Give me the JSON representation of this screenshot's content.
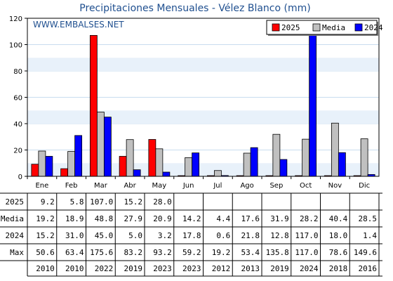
{
  "chart_data": {
    "type": "bar",
    "title": "Precipitaciones Mensuales - Vélez Blanco (mm)",
    "watermark": "WWW.EMBALSES.NET",
    "categories": [
      "Ene",
      "Feb",
      "Mar",
      "Abr",
      "May",
      "Jun",
      "Jul",
      "Ago",
      "Sep",
      "Oct",
      "Nov",
      "Dic"
    ],
    "ylim": [
      0,
      120
    ],
    "yticks": [
      0,
      20,
      40,
      60,
      80,
      100,
      120
    ],
    "legend_position": "top-right",
    "grid": "horizontal bands",
    "series": [
      {
        "name": "2025",
        "color": "#ff0000",
        "values": [
          9.2,
          5.8,
          107.0,
          15.2,
          28.0,
          0,
          0,
          0,
          0,
          0,
          0,
          0
        ]
      },
      {
        "name": "Media",
        "color": "#c0c0c0",
        "values": [
          19.2,
          18.9,
          48.8,
          27.9,
          20.9,
          14.2,
          4.4,
          17.6,
          31.9,
          28.2,
          40.4,
          28.5
        ]
      },
      {
        "name": "2024",
        "color": "#0000ff",
        "values": [
          15.2,
          31.0,
          45.0,
          5.0,
          3.2,
          17.8,
          0.6,
          21.8,
          12.8,
          117.0,
          18.0,
          1.4
        ]
      }
    ],
    "table": {
      "rows": [
        {
          "label": "2025",
          "cells": [
            "9.2",
            "5.8",
            "107.0",
            "15.2",
            "28.0",
            "",
            "",
            "",
            "",
            "",
            "",
            ""
          ]
        },
        {
          "label": "Media",
          "cells": [
            "19.2",
            "18.9",
            "48.8",
            "27.9",
            "20.9",
            "14.2",
            "4.4",
            "17.6",
            "31.9",
            "28.2",
            "40.4",
            "28.5"
          ]
        },
        {
          "label": "2024",
          "cells": [
            "15.2",
            "31.0",
            "45.0",
            "5.0",
            "3.2",
            "17.8",
            "0.6",
            "21.8",
            "12.8",
            "117.0",
            "18.0",
            "1.4"
          ]
        },
        {
          "label": "Max",
          "cells": [
            "50.6",
            "63.4",
            "175.6",
            "83.2",
            "93.2",
            "59.2",
            "19.2",
            "53.4",
            "135.8",
            "117.0",
            "78.6",
            "149.6"
          ]
        },
        {
          "label": "",
          "cells": [
            "2010",
            "2010",
            "2022",
            "2019",
            "2023",
            "2023",
            "2012",
            "2013",
            "2019",
            "2024",
            "2018",
            "2016"
          ]
        }
      ]
    }
  }
}
